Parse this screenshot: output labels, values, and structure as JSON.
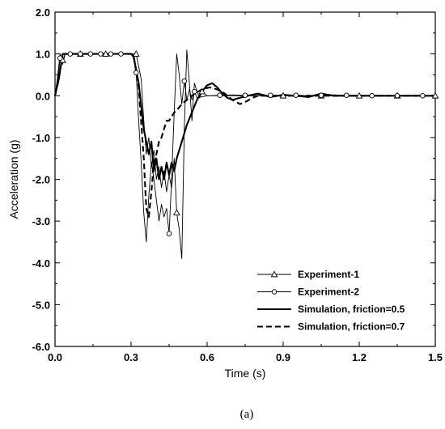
{
  "caption": "(a)",
  "chart_data": {
    "type": "line",
    "title": "",
    "xlabel": "Time (s)",
    "ylabel": "Acceleration (g)",
    "xlim": [
      0.0,
      1.5
    ],
    "ylim": [
      -6.0,
      2.0
    ],
    "x_ticks": [
      0.0,
      0.3,
      0.6,
      0.9,
      1.2,
      1.5
    ],
    "x_tick_labels": [
      "0.0",
      "0.3",
      "0.6",
      "0.9",
      "1.2",
      "1.5"
    ],
    "y_ticks": [
      2.0,
      1.0,
      0.0,
      -1.0,
      -2.0,
      -3.0,
      -4.0,
      -5.0,
      -6.0
    ],
    "y_tick_labels": [
      "2.0",
      "1.0",
      "0.0",
      "-1.0",
      "-2.0",
      "-3.0",
      "-4.0",
      "-5.0",
      "-6.0"
    ],
    "grid": false,
    "legend_position": "bottom-right",
    "series": [
      {
        "name": "Experiment-1",
        "style": "solid-thin",
        "marker": "triangle",
        "color": "#000000",
        "points": [
          [
            0,
            0
          ],
          [
            0.01,
            0.45
          ],
          [
            0.02,
            1.0
          ],
          [
            0.03,
            0.85
          ],
          [
            0.04,
            1.0
          ],
          [
            0.1,
            1.0
          ],
          [
            0.2,
            1.0
          ],
          [
            0.3,
            1.0
          ],
          [
            0.32,
            1.0
          ],
          [
            0.34,
            0.4
          ],
          [
            0.35,
            -0.6
          ],
          [
            0.36,
            -1.4
          ],
          [
            0.37,
            -1.0
          ],
          [
            0.38,
            -1.7
          ],
          [
            0.39,
            -1.3
          ],
          [
            0.4,
            -2.0
          ],
          [
            0.41,
            -1.7
          ],
          [
            0.42,
            -2.2
          ],
          [
            0.43,
            -1.8
          ],
          [
            0.44,
            -2.3
          ],
          [
            0.45,
            -1.9
          ],
          [
            0.46,
            -2.2
          ],
          [
            0.47,
            -1.5
          ],
          [
            0.48,
            -2.8
          ],
          [
            0.49,
            -3.2
          ],
          [
            0.5,
            -3.9
          ],
          [
            0.51,
            -0.8
          ],
          [
            0.52,
            1.1
          ],
          [
            0.53,
            0.3
          ],
          [
            0.54,
            -0.6
          ],
          [
            0.55,
            0.3
          ],
          [
            0.56,
            0.1
          ],
          [
            0.57,
            -0.05
          ],
          [
            0.58,
            0.1
          ],
          [
            0.6,
            0.0
          ],
          [
            0.7,
            0.0
          ],
          [
            0.8,
            0.0
          ],
          [
            0.9,
            0.0
          ],
          [
            1.0,
            0.0
          ],
          [
            1.1,
            0.0
          ],
          [
            1.2,
            0.0
          ],
          [
            1.3,
            0.0
          ],
          [
            1.4,
            0.0
          ],
          [
            1.5,
            0.0
          ]
        ],
        "marker_x": [
          0.03,
          0.1,
          0.2,
          0.32,
          0.48,
          0.58,
          0.9,
          1.05,
          1.2,
          1.35,
          1.5
        ]
      },
      {
        "name": "Experiment-2",
        "style": "solid-thin",
        "marker": "circle",
        "color": "#000000",
        "points": [
          [
            0,
            0
          ],
          [
            0.01,
            0.3
          ],
          [
            0.02,
            0.9
          ],
          [
            0.03,
            0.75
          ],
          [
            0.04,
            1.0
          ],
          [
            0.1,
            1.0
          ],
          [
            0.2,
            1.0
          ],
          [
            0.3,
            1.0
          ],
          [
            0.31,
            0.9
          ],
          [
            0.32,
            0.55
          ],
          [
            0.33,
            -0.6
          ],
          [
            0.34,
            -1.6
          ],
          [
            0.35,
            -2.8
          ],
          [
            0.36,
            -3.5
          ],
          [
            0.37,
            -2.4
          ],
          [
            0.38,
            -1.6
          ],
          [
            0.39,
            -2.0
          ],
          [
            0.4,
            -2.5
          ],
          [
            0.41,
            -3.0
          ],
          [
            0.42,
            -2.6
          ],
          [
            0.43,
            -2.9
          ],
          [
            0.44,
            -2.7
          ],
          [
            0.45,
            -3.3
          ],
          [
            0.46,
            -2.0
          ],
          [
            0.47,
            -0.4
          ],
          [
            0.48,
            1.0
          ],
          [
            0.49,
            0.5
          ],
          [
            0.5,
            -0.2
          ],
          [
            0.51,
            0.35
          ],
          [
            0.52,
            -0.1
          ],
          [
            0.53,
            0.15
          ],
          [
            0.54,
            -0.1
          ],
          [
            0.55,
            0.1
          ],
          [
            0.56,
            -0.05
          ],
          [
            0.6,
            0.0
          ],
          [
            0.7,
            0.02
          ],
          [
            0.8,
            0.0
          ],
          [
            0.9,
            0.02
          ],
          [
            1.0,
            0.0
          ],
          [
            1.1,
            0.02
          ],
          [
            1.2,
            0.0
          ],
          [
            1.3,
            0.0
          ],
          [
            1.4,
            0.0
          ],
          [
            1.5,
            0.0
          ]
        ],
        "marker_x": [
          0.02,
          0.06,
          0.1,
          0.14,
          0.18,
          0.22,
          0.26,
          0.32,
          0.45,
          0.51,
          0.55,
          0.65,
          0.75,
          0.85,
          0.95,
          1.05,
          1.15,
          1.25,
          1.35,
          1.45
        ]
      },
      {
        "name": "Simulation, friction=0.5",
        "style": "solid-thick",
        "color": "#000000",
        "points": [
          [
            0,
            0
          ],
          [
            0.015,
            0.4
          ],
          [
            0.03,
            1.0
          ],
          [
            0.1,
            1.0
          ],
          [
            0.2,
            1.0
          ],
          [
            0.3,
            1.0
          ],
          [
            0.31,
            0.95
          ],
          [
            0.33,
            0.3
          ],
          [
            0.35,
            -0.8
          ],
          [
            0.37,
            -1.4
          ],
          [
            0.38,
            -1.1
          ],
          [
            0.39,
            -1.8
          ],
          [
            0.4,
            -1.5
          ],
          [
            0.41,
            -2.0
          ],
          [
            0.42,
            -1.7
          ],
          [
            0.43,
            -2.0
          ],
          [
            0.44,
            -1.6
          ],
          [
            0.45,
            -1.9
          ],
          [
            0.46,
            -1.6
          ],
          [
            0.47,
            -1.8
          ],
          [
            0.48,
            -1.5
          ],
          [
            0.5,
            -1.1
          ],
          [
            0.52,
            -0.7
          ],
          [
            0.54,
            -0.4
          ],
          [
            0.56,
            -0.1
          ],
          [
            0.58,
            0.1
          ],
          [
            0.6,
            0.25
          ],
          [
            0.62,
            0.3
          ],
          [
            0.64,
            0.2
          ],
          [
            0.66,
            0.05
          ],
          [
            0.68,
            -0.05
          ],
          [
            0.7,
            -0.1
          ],
          [
            0.73,
            -0.05
          ],
          [
            0.76,
            0.0
          ],
          [
            0.8,
            0.05
          ],
          [
            0.85,
            -0.03
          ],
          [
            0.9,
            0.02
          ],
          [
            0.95,
            0.0
          ],
          [
            1.0,
            -0.03
          ],
          [
            1.05,
            0.05
          ],
          [
            1.1,
            0.0
          ],
          [
            1.2,
            0.0
          ],
          [
            1.3,
            0.0
          ],
          [
            1.4,
            0.0
          ],
          [
            1.5,
            0.0
          ]
        ]
      },
      {
        "name": "Simulation, friction=0.7",
        "style": "dashed",
        "color": "#000000",
        "points": [
          [
            0,
            0
          ],
          [
            0.015,
            0.4
          ],
          [
            0.03,
            1.0
          ],
          [
            0.1,
            1.0
          ],
          [
            0.2,
            1.0
          ],
          [
            0.3,
            1.0
          ],
          [
            0.31,
            0.95
          ],
          [
            0.33,
            0.2
          ],
          [
            0.35,
            -1.5
          ],
          [
            0.36,
            -2.7
          ],
          [
            0.37,
            -2.9
          ],
          [
            0.38,
            -2.3
          ],
          [
            0.39,
            -1.6
          ],
          [
            0.4,
            -1.4
          ],
          [
            0.41,
            -1.1
          ],
          [
            0.42,
            -1.0
          ],
          [
            0.43,
            -0.8
          ],
          [
            0.44,
            -0.6
          ],
          [
            0.45,
            -0.6
          ],
          [
            0.46,
            -0.5
          ],
          [
            0.47,
            -0.4
          ],
          [
            0.48,
            -0.35
          ],
          [
            0.5,
            -0.2
          ],
          [
            0.52,
            -0.1
          ],
          [
            0.55,
            0.05
          ],
          [
            0.58,
            0.15
          ],
          [
            0.61,
            0.2
          ],
          [
            0.64,
            0.15
          ],
          [
            0.67,
            0.05
          ],
          [
            0.7,
            -0.1
          ],
          [
            0.73,
            -0.2
          ],
          [
            0.75,
            -0.15
          ],
          [
            0.78,
            -0.05
          ],
          [
            0.8,
            0.0
          ],
          [
            0.85,
            0.0
          ],
          [
            0.9,
            0.0
          ],
          [
            1.0,
            0.0
          ],
          [
            1.1,
            0.0
          ],
          [
            1.2,
            0.0
          ],
          [
            1.3,
            0.0
          ],
          [
            1.4,
            0.0
          ],
          [
            1.5,
            0.0
          ]
        ]
      }
    ]
  }
}
